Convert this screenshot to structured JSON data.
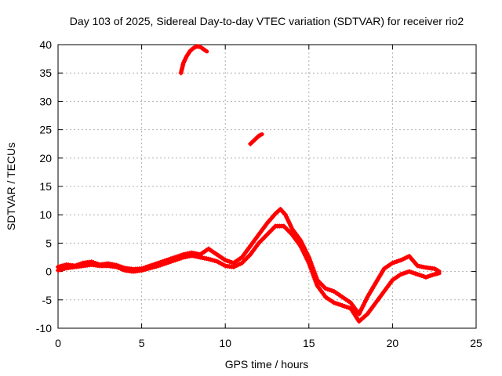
{
  "chart_data": {
    "type": "scatter",
    "title": "Day 103 of 2025, Sidereal Day-to-day VTEC variation (SDTVAR) for receiver rio2",
    "xlabel": "GPS time / hours",
    "ylabel": "SDTVAR / TECUs",
    "xlim": [
      0,
      25
    ],
    "ylim": [
      -10,
      40
    ],
    "xticks": [
      0,
      5,
      10,
      15,
      20,
      25
    ],
    "yticks": [
      -10,
      -5,
      0,
      5,
      10,
      15,
      20,
      25,
      30,
      35,
      40
    ],
    "grid": true,
    "marker": "+",
    "series": [
      {
        "name": "main-track-upper",
        "color": "#ff0000",
        "x": [
          0.0,
          0.5,
          1.0,
          1.5,
          2.0,
          2.5,
          3.0,
          3.5,
          4.0,
          4.5,
          5.0,
          5.5,
          6.0,
          6.5,
          7.0,
          7.5,
          8.0,
          8.5,
          9.0,
          9.5,
          10.0,
          10.5,
          11.0,
          11.5,
          12.0,
          12.5,
          13.0,
          13.3,
          13.6,
          14.0,
          14.5,
          15.0,
          15.5,
          16.0,
          16.5,
          17.0,
          17.5,
          18.0,
          18.5,
          19.0,
          19.5,
          20.0,
          20.5,
          21.0,
          21.5,
          22.0,
          22.5,
          22.8
        ],
        "y": [
          0.8,
          1.2,
          1.0,
          1.5,
          1.7,
          1.2,
          1.4,
          1.1,
          0.6,
          0.4,
          0.5,
          1.0,
          1.5,
          2.0,
          2.5,
          3.0,
          3.3,
          3.0,
          4.0,
          3.0,
          2.0,
          1.5,
          2.5,
          4.5,
          6.5,
          8.5,
          10.2,
          11.0,
          10.0,
          7.5,
          5.5,
          2.5,
          -1.5,
          -3.0,
          -3.5,
          -4.5,
          -5.5,
          -7.5,
          -4.5,
          -2.0,
          0.5,
          1.5,
          2.0,
          2.7,
          1.0,
          0.7,
          0.5,
          0.0
        ]
      },
      {
        "name": "main-track-lower",
        "color": "#ff0000",
        "x": [
          0.0,
          0.5,
          1.0,
          1.5,
          2.0,
          2.5,
          3.0,
          3.5,
          4.0,
          4.5,
          5.0,
          5.5,
          6.0,
          6.5,
          7.0,
          7.5,
          8.0,
          8.5,
          9.0,
          9.5,
          10.0,
          10.5,
          11.0,
          11.5,
          12.0,
          12.5,
          13.0,
          13.5,
          14.0,
          14.5,
          15.0,
          15.5,
          16.0,
          16.5,
          17.0,
          17.5,
          18.0,
          18.5,
          19.0,
          19.5,
          20.0,
          20.5,
          21.0,
          21.5,
          22.0,
          22.5,
          22.8
        ],
        "y": [
          0.2,
          0.6,
          0.8,
          1.0,
          1.2,
          1.0,
          1.0,
          0.8,
          0.2,
          0.0,
          0.2,
          0.6,
          1.0,
          1.5,
          2.0,
          2.5,
          2.8,
          2.5,
          2.2,
          1.8,
          1.0,
          0.8,
          1.5,
          3.0,
          5.0,
          6.5,
          8.0,
          8.0,
          6.5,
          4.5,
          1.5,
          -2.5,
          -4.5,
          -5.5,
          -6.0,
          -6.5,
          -8.8,
          -7.5,
          -5.5,
          -3.5,
          -1.5,
          -0.5,
          0.0,
          -0.5,
          -1.0,
          -0.5,
          -0.3
        ]
      },
      {
        "name": "segment-high-arc",
        "color": "#ff0000",
        "x": [
          7.35,
          7.5,
          7.7,
          7.9,
          8.1,
          8.3,
          8.5,
          8.7,
          8.9
        ],
        "y": [
          35.0,
          36.8,
          38.0,
          38.9,
          39.4,
          39.7,
          39.6,
          39.2,
          38.8
        ]
      },
      {
        "name": "segment-mid",
        "color": "#ff0000",
        "x": [
          11.5,
          11.75,
          12.0,
          12.2
        ],
        "y": [
          22.5,
          23.2,
          23.9,
          24.2
        ]
      }
    ]
  }
}
